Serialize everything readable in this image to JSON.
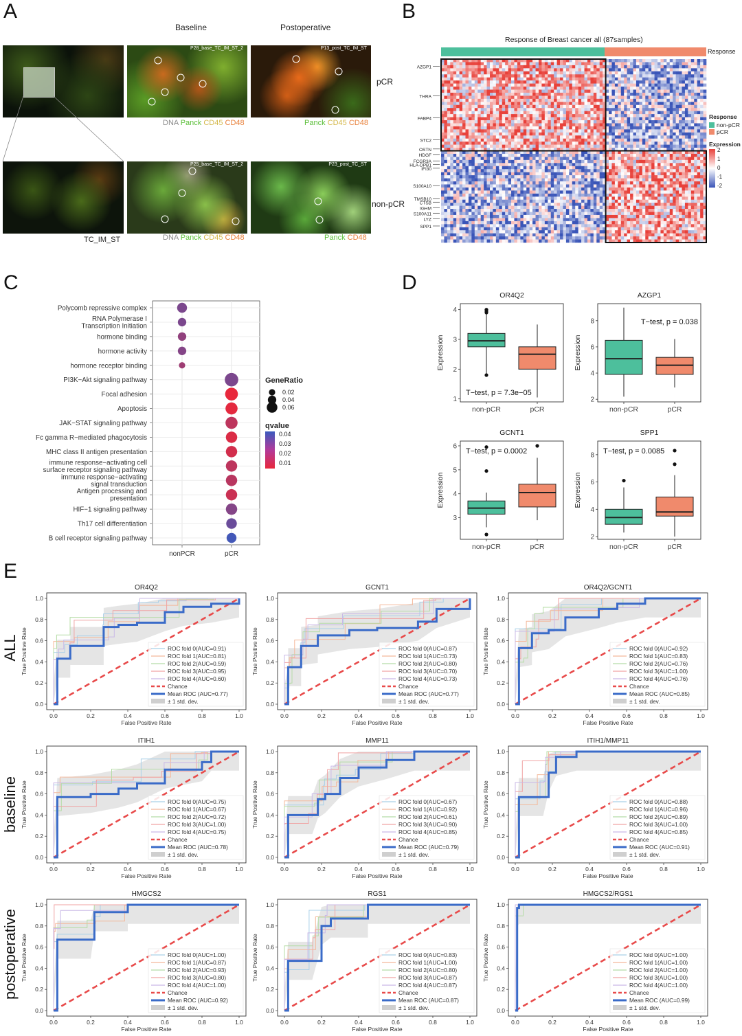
{
  "panels": {
    "a": "A",
    "b": "B",
    "c": "C",
    "d": "D",
    "e": "E"
  },
  "panelA": {
    "col_baseline": "Baseline",
    "col_postop": "Postoperative",
    "row_pcr": "pCR",
    "row_nonpcr": "non-pCR",
    "overview_label": "TC_IM_ST",
    "img_titles": [
      "P28_base_TC_IM_ST_2",
      "P13_post_TC_IM_ST",
      "P25_base_TC_IM_ST_2",
      "P23_post_TC_ST"
    ],
    "stain_words": {
      "dna": "DNA",
      "panck": "Panck",
      "cd45": "CD45",
      "cd48": "CD48"
    },
    "colors": {
      "dna": "#9a9a9a",
      "panck": "#5cbf3a",
      "cd45": "#d4b84a",
      "cd48": "#e8803a"
    }
  },
  "panelB": {
    "title": "Response of Breast cancer all (87samples)",
    "response_label": "Response",
    "genes_top": [
      "AZGP1",
      "THRA",
      "FABP4",
      "STC2",
      "OSTN"
    ],
    "genes_bottom": [
      "HDGF",
      "FCGR3A",
      "HLA-DPB1",
      "IFI30",
      "S100A10",
      "TMSB10",
      "CTSB",
      "IGHM",
      "S100A11",
      "LYZ",
      "SPP1"
    ],
    "legend": {
      "response_title": "Response",
      "non_pcr": "non-pCR",
      "pcr": "pCR",
      "expression_title": "Expression",
      "ticks": [
        "2",
        "1",
        "0",
        "-1",
        "-2"
      ]
    },
    "colors": {
      "non_pcr": "#4dbf9c",
      "pcr": "#f08a6c",
      "high": "#e8413a",
      "low": "#3a55b8"
    }
  },
  "panelC": {
    "terms": [
      "Polycomb repressive complex",
      "RNA Polymerase I Transcription Initiation",
      "hormone binding",
      "hormone activity",
      "hormone receptor binding",
      "PI3K−Akt signaling pathway",
      "Focal adhesion",
      "Apoptosis",
      "JAK−STAT signaling pathway",
      "Fc gamma R−mediated phagocytosis",
      "MHC class II antigen presentation",
      "immune response−activating cell surface receptor signaling pathway",
      "immune response−activating signal transduction",
      "Antigen processing and presentation",
      "HIF−1 signaling pathway",
      "Th17 cell differentiation",
      "B cell receptor signaling pathway"
    ],
    "x_categories": [
      "nonPCR",
      "pCR"
    ],
    "points": [
      {
        "term": 0,
        "group": 0,
        "ratio": 0.04,
        "q": 0.03
      },
      {
        "term": 1,
        "group": 0,
        "ratio": 0.03,
        "q": 0.03
      },
      {
        "term": 2,
        "group": 0,
        "ratio": 0.03,
        "q": 0.025
      },
      {
        "term": 3,
        "group": 0,
        "ratio": 0.03,
        "q": 0.028
      },
      {
        "term": 4,
        "group": 0,
        "ratio": 0.015,
        "q": 0.022
      },
      {
        "term": 5,
        "group": 1,
        "ratio": 0.065,
        "q": 0.03
      },
      {
        "term": 6,
        "group": 1,
        "ratio": 0.06,
        "q": 0.005
      },
      {
        "term": 7,
        "group": 1,
        "ratio": 0.055,
        "q": 0.006
      },
      {
        "term": 8,
        "group": 1,
        "ratio": 0.055,
        "q": 0.015
      },
      {
        "term": 9,
        "group": 1,
        "ratio": 0.05,
        "q": 0.008
      },
      {
        "term": 10,
        "group": 1,
        "ratio": 0.05,
        "q": 0.01
      },
      {
        "term": 11,
        "group": 1,
        "ratio": 0.05,
        "q": 0.015
      },
      {
        "term": 12,
        "group": 1,
        "ratio": 0.05,
        "q": 0.016
      },
      {
        "term": 13,
        "group": 1,
        "ratio": 0.05,
        "q": 0.012
      },
      {
        "term": 14,
        "group": 1,
        "ratio": 0.05,
        "q": 0.028
      },
      {
        "term": 15,
        "group": 1,
        "ratio": 0.045,
        "q": 0.034
      },
      {
        "term": 16,
        "group": 1,
        "ratio": 0.04,
        "q": 0.043
      }
    ],
    "legend": {
      "size_title": "GeneRatio",
      "size_ticks": [
        "0.02",
        "0.04",
        "0.06"
      ],
      "color_title": "qvalue",
      "color_ticks": [
        "0.04",
        "0.03",
        "0.02",
        "0.01"
      ]
    }
  },
  "chart_data": [
    {
      "type": "box",
      "title": "OR4Q2",
      "ylabel": "Expression",
      "categories": [
        "non-pCR",
        "pCR"
      ],
      "yticks": [
        "1",
        "2",
        "3",
        "4"
      ],
      "ylim": [
        0.9,
        4.2
      ],
      "boxes": [
        {
          "min": 1.8,
          "q1": 2.75,
          "median": 2.95,
          "q3": 3.2,
          "max": 3.95,
          "outliers": [
            4.0,
            3.95,
            3.9,
            1.8
          ]
        },
        {
          "min": 1.05,
          "q1": 2.0,
          "median": 2.5,
          "q3": 2.75,
          "max": 3.5,
          "outliers": []
        }
      ],
      "annotation": "T−test, p = 7.3e−05",
      "annotation_pos": "bottom-left"
    },
    {
      "type": "box",
      "title": "AZGP1",
      "ylabel": "Expression",
      "categories": [
        "non-pCR",
        "pCR"
      ],
      "yticks": [
        "2",
        "4",
        "6",
        "8"
      ],
      "ylim": [
        1.8,
        9.3
      ],
      "boxes": [
        {
          "min": 2.2,
          "q1": 3.9,
          "median": 5.1,
          "q3": 6.5,
          "max": 9.0,
          "outliers": []
        },
        {
          "min": 2.9,
          "q1": 3.9,
          "median": 4.6,
          "q3": 5.2,
          "max": 6.6,
          "outliers": []
        }
      ],
      "annotation": "T−test, p = 0.038",
      "annotation_pos": "top-right"
    },
    {
      "type": "box",
      "title": "GCNT1",
      "ylabel": "Expression",
      "categories": [
        "non-pCR",
        "pCR"
      ],
      "yticks": [
        "3",
        "4",
        "5",
        "6"
      ],
      "ylim": [
        2.1,
        6.2
      ],
      "boxes": [
        {
          "min": 2.6,
          "q1": 3.15,
          "median": 3.4,
          "q3": 3.7,
          "max": 4.05,
          "outliers": [
            5.95,
            4.95,
            2.3
          ]
        },
        {
          "min": 2.9,
          "q1": 3.45,
          "median": 4.05,
          "q3": 4.4,
          "max": 5.5,
          "outliers": [
            6.0
          ]
        }
      ],
      "annotation": "T−test, p = 0.0002",
      "annotation_pos": "top-left"
    },
    {
      "type": "box",
      "title": "SPP1",
      "ylabel": "Expression",
      "categories": [
        "non-pCR",
        "pCR"
      ],
      "yticks": [
        "2",
        "4",
        "6",
        "8"
      ],
      "ylim": [
        1.8,
        9.0
      ],
      "boxes": [
        {
          "min": 2.3,
          "q1": 2.9,
          "median": 3.4,
          "q3": 4.0,
          "max": 5.6,
          "outliers": [
            6.1
          ]
        },
        {
          "min": 2.0,
          "q1": 3.5,
          "median": 3.8,
          "q3": 4.9,
          "max": 6.5,
          "outliers": [
            7.3,
            8.3
          ]
        }
      ],
      "annotation": "T−test, p = 0.0085",
      "annotation_pos": "top-left"
    },
    {
      "type": "line",
      "title": "OR4Q2",
      "row": "ALL",
      "xlabel": "False Positive Rate",
      "ylabel": "True Positive Rate",
      "xticks": [
        "0.0",
        "0.2",
        "0.4",
        "0.6",
        "0.8",
        "1.0"
      ],
      "yticks": [
        "0.0",
        "0.2",
        "0.4",
        "0.6",
        "0.8",
        "1.0"
      ],
      "legend": [
        "ROC fold 0(AUC=0.91)",
        "ROC fold 1(AUC=0.81)",
        "ROC fold 2(AUC=0.59)",
        "ROC fold 3(AUC=0.95)",
        "ROC fold 4(AUC=0.60)",
        "Chance",
        "Mean ROC (AUC=0.77)",
        "± 1 std. dev."
      ],
      "mean_roc": [
        [
          0,
          0
        ],
        [
          0.02,
          0.43
        ],
        [
          0.09,
          0.43
        ],
        [
          0.09,
          0.55
        ],
        [
          0.27,
          0.55
        ],
        [
          0.27,
          0.73
        ],
        [
          0.35,
          0.75
        ],
        [
          0.45,
          0.77
        ],
        [
          0.6,
          0.87
        ],
        [
          0.7,
          0.92
        ],
        [
          0.85,
          0.95
        ],
        [
          1,
          1
        ]
      ]
    },
    {
      "type": "line",
      "title": "GCNT1",
      "row": "ALL",
      "xlabel": "False Positive Rate",
      "ylabel": "True Positive Rate",
      "xticks": [
        "0.0",
        "0.2",
        "0.4",
        "0.6",
        "0.8",
        "1.0"
      ],
      "yticks": [
        "0.0",
        "0.2",
        "0.4",
        "0.6",
        "0.8",
        "1.0"
      ],
      "legend": [
        "ROC fold 0(AUC=0.87)",
        "ROC fold 1(AUC=0.73)",
        "ROC fold 2(AUC=0.80)",
        "ROC fold 3(AUC=0.70)",
        "ROC fold 4(AUC=0.73)",
        "Chance",
        "Mean ROC (AUC=0.77)",
        "± 1 std. dev."
      ],
      "mean_roc": [
        [
          0,
          0
        ],
        [
          0.02,
          0.17
        ],
        [
          0.02,
          0.35
        ],
        [
          0.09,
          0.35
        ],
        [
          0.09,
          0.55
        ],
        [
          0.18,
          0.57
        ],
        [
          0.18,
          0.65
        ],
        [
          0.35,
          0.7
        ],
        [
          0.5,
          0.72
        ],
        [
          0.72,
          0.78
        ],
        [
          0.82,
          0.9
        ],
        [
          1,
          1
        ]
      ]
    },
    {
      "type": "line",
      "title": "OR4Q2/GCNT1",
      "row": "ALL",
      "xlabel": "False Positive Rate",
      "ylabel": "True Positive Rate",
      "xticks": [
        "0.0",
        "0.2",
        "0.4",
        "0.6",
        "0.8",
        "1.0"
      ],
      "yticks": [
        "0.0",
        "0.2",
        "0.4",
        "0.6",
        "0.8",
        "1.0"
      ],
      "legend": [
        "ROC fold 0(AUC=0.92)",
        "ROC fold 1(AUC=0.83)",
        "ROC fold 2(AUC=0.76)",
        "ROC fold 3(AUC=1.00)",
        "ROC fold 4(AUC=0.76)",
        "Chance",
        "Mean ROC (AUC=0.85)",
        "± 1 std. dev."
      ],
      "mean_roc": [
        [
          0,
          0
        ],
        [
          0.02,
          0.53
        ],
        [
          0.09,
          0.55
        ],
        [
          0.09,
          0.67
        ],
        [
          0.18,
          0.7
        ],
        [
          0.27,
          0.82
        ],
        [
          0.45,
          0.9
        ],
        [
          0.55,
          0.95
        ],
        [
          0.7,
          1.0
        ],
        [
          1,
          1
        ]
      ]
    },
    {
      "type": "line",
      "title": "ITIH1",
      "row": "baseline",
      "xlabel": "False Positive Rate",
      "ylabel": "True Positive Rate",
      "xticks": [
        "0.0",
        "0.2",
        "0.4",
        "0.6",
        "0.8",
        "1.0"
      ],
      "yticks": [
        "0.0",
        "0.2",
        "0.4",
        "0.6",
        "0.8",
        "1.0"
      ],
      "legend": [
        "ROC fold 0(AUC=0.75)",
        "ROC fold 1(AUC=0.67)",
        "ROC fold 2(AUC=0.72)",
        "ROC fold 3(AUC=1.00)",
        "ROC fold 4(AUC=0.75)",
        "Chance",
        "Mean ROC (AUC=0.78)",
        "± 1 std. dev."
      ],
      "mean_roc": [
        [
          0,
          0
        ],
        [
          0.02,
          0.57
        ],
        [
          0.2,
          0.6
        ],
        [
          0.35,
          0.65
        ],
        [
          0.45,
          0.7
        ],
        [
          0.6,
          0.83
        ],
        [
          0.8,
          0.9
        ],
        [
          0.85,
          1.0
        ],
        [
          1,
          1
        ]
      ]
    },
    {
      "type": "line",
      "title": "MMP11",
      "row": "baseline",
      "xlabel": "False Positive Rate",
      "ylabel": "True Positive Rate",
      "xticks": [
        "0.0",
        "0.2",
        "0.4",
        "0.6",
        "0.8",
        "1.0"
      ],
      "yticks": [
        "0.0",
        "0.2",
        "0.4",
        "0.6",
        "0.8",
        "1.0"
      ],
      "legend": [
        "ROC fold 0(AUC=0.67)",
        "ROC fold 1(AUC=0.92)",
        "ROC fold 2(AUC=0.61)",
        "ROC fold 3(AUC=0.90)",
        "ROC fold 4(AUC=0.85)",
        "Chance",
        "Mean ROC (AUC=0.79)",
        "± 1 std. dev."
      ],
      "mean_roc": [
        [
          0,
          0
        ],
        [
          0.02,
          0.4
        ],
        [
          0.15,
          0.4
        ],
        [
          0.18,
          0.55
        ],
        [
          0.22,
          0.6
        ],
        [
          0.3,
          0.75
        ],
        [
          0.4,
          0.85
        ],
        [
          0.55,
          0.92
        ],
        [
          0.7,
          1.0
        ],
        [
          1,
          1
        ]
      ]
    },
    {
      "type": "line",
      "title": "ITIH1/MMP11",
      "row": "baseline",
      "xlabel": "False Positive Rate",
      "ylabel": "True Positive Rate",
      "xticks": [
        "0.0",
        "0.2",
        "0.4",
        "0.6",
        "0.8",
        "1.0"
      ],
      "yticks": [
        "0.0",
        "0.2",
        "0.4",
        "0.6",
        "0.8",
        "1.0"
      ],
      "legend": [
        "ROC fold 0(AUC=0.88)",
        "ROC fold 1(AUC=0.96)",
        "ROC fold 2(AUC=0.89)",
        "ROC fold 3(AUC=1.00)",
        "ROC fold 4(AUC=0.85)",
        "Chance",
        "Mean ROC (AUC=0.91)",
        "± 1 std. dev."
      ],
      "mean_roc": [
        [
          0,
          0
        ],
        [
          0.02,
          0.57
        ],
        [
          0.15,
          0.57
        ],
        [
          0.18,
          0.8
        ],
        [
          0.22,
          0.95
        ],
        [
          0.33,
          1.0
        ],
        [
          1,
          1
        ]
      ]
    },
    {
      "type": "line",
      "title": "HMGCS2",
      "row": "postoperative",
      "xlabel": "False Positive Rate",
      "ylabel": "True Positive Rate",
      "xticks": [
        "0.0",
        "0.2",
        "0.4",
        "0.6",
        "0.8",
        "1.0"
      ],
      "yticks": [
        "0.0",
        "0.2",
        "0.4",
        "0.6",
        "0.8",
        "1.0"
      ],
      "legend": [
        "ROC fold 0(AUC=1.00)",
        "ROC fold 1(AUC=0.87)",
        "ROC fold 2(AUC=0.93)",
        "ROC fold 3(AUC=0.80)",
        "ROC fold 4(AUC=1.00)",
        "Chance",
        "Mean ROC (AUC=0.92)",
        "± 1 std. dev."
      ],
      "mean_roc": [
        [
          0,
          0
        ],
        [
          0.02,
          0.67
        ],
        [
          0.2,
          0.67
        ],
        [
          0.22,
          0.93
        ],
        [
          0.4,
          0.93
        ],
        [
          0.4,
          1.0
        ],
        [
          1,
          1
        ]
      ]
    },
    {
      "type": "line",
      "title": "RGS1",
      "row": "postoperative",
      "xlabel": "False Positive Rate",
      "ylabel": "True Positive Rate",
      "xticks": [
        "0.0",
        "0.2",
        "0.4",
        "0.6",
        "0.8",
        "1.0"
      ],
      "yticks": [
        "0.0",
        "0.2",
        "0.4",
        "0.6",
        "0.8",
        "1.0"
      ],
      "legend": [
        "ROC fold 0(AUC=0.83)",
        "ROC fold 1(AUC=1.00)",
        "ROC fold 2(AUC=0.80)",
        "ROC fold 3(AUC=0.87)",
        "ROC fold 4(AUC=0.87)",
        "Chance",
        "Mean ROC (AUC=0.87)",
        "± 1 std. dev."
      ],
      "mean_roc": [
        [
          0,
          0
        ],
        [
          0.02,
          0.47
        ],
        [
          0.15,
          0.47
        ],
        [
          0.2,
          0.8
        ],
        [
          0.25,
          0.87
        ],
        [
          0.45,
          0.87
        ],
        [
          0.45,
          1.0
        ],
        [
          1,
          1
        ]
      ]
    },
    {
      "type": "line",
      "title": "HMGCS2/RGS1",
      "row": "postoperative",
      "xlabel": "False Positive Rate",
      "ylabel": "True Positive Rate",
      "xticks": [
        "0.0",
        "0.2",
        "0.4",
        "0.6",
        "0.8",
        "1.0"
      ],
      "yticks": [
        "0.0",
        "0.2",
        "0.4",
        "0.6",
        "0.8",
        "1.0"
      ],
      "legend": [
        "ROC fold 0(AUC=1.00)",
        "ROC fold 1(AUC=1.00)",
        "ROC fold 2(AUC=1.00)",
        "ROC fold 3(AUC=1.00)",
        "ROC fold 4(AUC=1.00)",
        "Chance",
        "Mean ROC (AUC=0.99)",
        "± 1 std. dev."
      ],
      "mean_roc": [
        [
          0,
          0
        ],
        [
          0.01,
          0.97
        ],
        [
          0.02,
          1.0
        ],
        [
          1,
          1
        ]
      ]
    }
  ],
  "panelE": {
    "row_labels": [
      "ALL",
      "baseline",
      "postoperative"
    ],
    "fold_colors": [
      "#a9d0e8",
      "#f4b89a",
      "#b5dca6",
      "#f0a3a3",
      "#c9b8e6"
    ],
    "chance_color": "#e84a4a",
    "mean_color": "#3a6bc8"
  }
}
